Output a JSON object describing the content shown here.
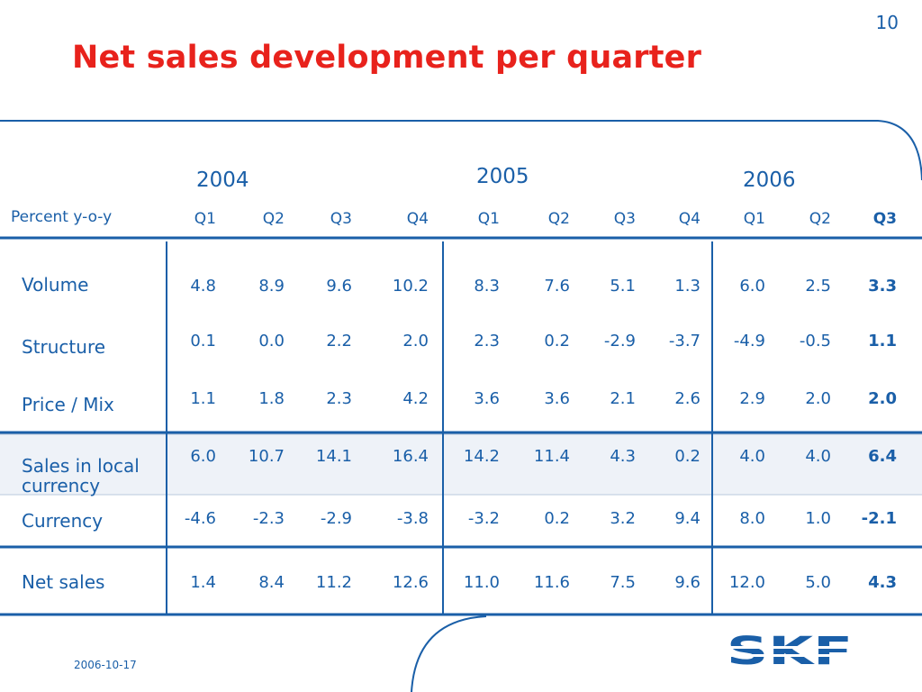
{
  "slide_number": "10",
  "title": "Net sales development per quarter",
  "years": [
    "2004",
    "2005",
    "2006"
  ],
  "row_header": "Percent y-o-y",
  "quarters": [
    "Q1",
    "Q2",
    "Q3",
    "Q4",
    "Q1",
    "Q2",
    "Q3",
    "Q4",
    "Q1",
    "Q2",
    "Q3"
  ],
  "rows": [
    {
      "label": "Volume",
      "values": [
        "4.8",
        "8.9",
        "9.6",
        "10.2",
        "8.3",
        "7.6",
        "5.1",
        "1.3",
        "6.0",
        "2.5",
        "3.3"
      ]
    },
    {
      "label": "Structure",
      "values": [
        "0.1",
        "0.0",
        "2.2",
        "2.0",
        "2.3",
        "0.2",
        "-2.9",
        "-3.7",
        "-4.9",
        "-0.5",
        "1.1"
      ]
    },
    {
      "label": "Price / Mix",
      "values": [
        "1.1",
        "1.8",
        "2.3",
        "4.2",
        "3.6",
        "3.6",
        "2.1",
        "2.6",
        "2.9",
        "2.0",
        "2.0"
      ]
    },
    {
      "label": "Sales in local currency",
      "values": [
        "6.0",
        "10.7",
        "14.1",
        "16.4",
        "14.2",
        "11.4",
        "4.3",
        "0.2",
        "4.0",
        "4.0",
        "6.4"
      ]
    },
    {
      "label": "Currency",
      "values": [
        "-4.6",
        "-2.3",
        "-2.9",
        "-3.8",
        "-3.2",
        "0.2",
        "3.2",
        "9.4",
        "8.0",
        "1.0",
        "-2.1"
      ]
    },
    {
      "label": "Net sales",
      "values": [
        "1.4",
        "8.4",
        "11.2",
        "12.6",
        "11.0",
        "11.6",
        "7.5",
        "9.6",
        "12.0",
        "5.0",
        "4.3"
      ]
    }
  ],
  "date": "2006-10-17",
  "logo_text": "SKF",
  "colors": {
    "title": "#e8221c",
    "text": "#1a5fa8",
    "highlight_row": "#eef2f8"
  }
}
